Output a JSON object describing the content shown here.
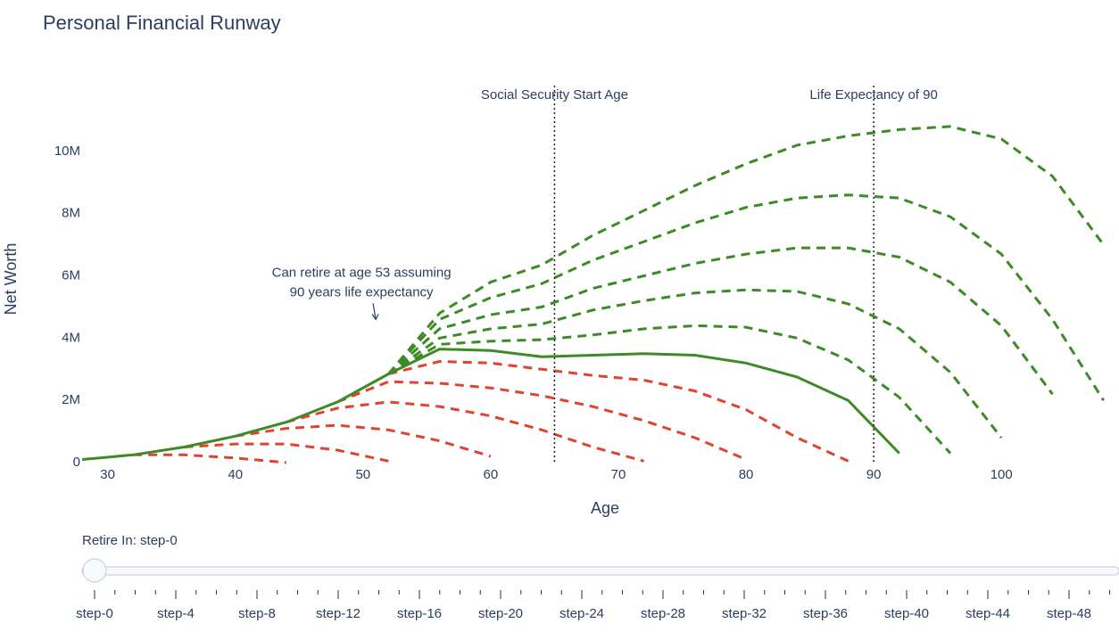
{
  "chart_data": {
    "type": "line",
    "title": "Personal Financial Runway",
    "x_label": "Age",
    "y_label": "Net Worth",
    "x": [
      28,
      32,
      36,
      40,
      44,
      48,
      52,
      56,
      60,
      64,
      68,
      72,
      76,
      80,
      84,
      88,
      92,
      96,
      100,
      104,
      108
    ],
    "xlim": [
      28,
      109
    ],
    "xticks": [
      30,
      40,
      50,
      60,
      70,
      80,
      90,
      100
    ],
    "ylim": [
      0,
      12000000
    ],
    "yticks": [
      0,
      {
        "value": 2000000,
        "label": "2M"
      },
      {
        "value": 4000000,
        "label": "4M"
      },
      {
        "value": 6000000,
        "label": "6M"
      },
      {
        "value": 8000000,
        "label": "8M"
      },
      {
        "value": 10000000,
        "label": "10M"
      }
    ],
    "grid": false,
    "series": [
      {
        "color": "#e0442f",
        "dash": "dash",
        "values": [
          null,
          250000,
          250000,
          150000,
          0,
          null,
          null,
          null,
          null,
          null,
          null,
          null,
          null,
          null,
          null,
          null,
          null,
          null,
          null,
          null,
          null
        ]
      },
      {
        "color": "#e0442f",
        "dash": "dash",
        "values": [
          null,
          null,
          500000,
          600000,
          600000,
          400000,
          50000,
          null,
          null,
          null,
          null,
          null,
          null,
          null,
          null,
          null,
          null,
          null,
          null,
          null,
          null
        ]
      },
      {
        "color": "#e0442f",
        "dash": "dash",
        "values": [
          null,
          null,
          null,
          850000,
          1100000,
          1200000,
          1050000,
          700000,
          200000,
          null,
          null,
          null,
          null,
          null,
          null,
          null,
          null,
          null,
          null,
          null,
          null
        ]
      },
      {
        "color": "#e0442f",
        "dash": "dash",
        "values": [
          null,
          null,
          null,
          null,
          1300000,
          1750000,
          1950000,
          1800000,
          1500000,
          1050000,
          500000,
          50000,
          null,
          null,
          null,
          null,
          null,
          null,
          null,
          null,
          null
        ]
      },
      {
        "color": "#e0442f",
        "dash": "dash",
        "values": [
          null,
          null,
          null,
          null,
          null,
          1950000,
          2600000,
          2550000,
          2400000,
          2150000,
          1800000,
          1350000,
          800000,
          100000,
          null,
          null,
          null,
          null,
          null,
          null,
          null
        ]
      },
      {
        "color": "#e0442f",
        "dash": "dash",
        "values": [
          null,
          null,
          null,
          null,
          null,
          null,
          2850000,
          3250000,
          3200000,
          3000000,
          2800000,
          2650000,
          2300000,
          1700000,
          800000,
          50000,
          null,
          null,
          null,
          null,
          null
        ]
      },
      {
        "color": "#3d8b26",
        "dash": "dash",
        "values": [
          null,
          null,
          null,
          null,
          null,
          null,
          2850000,
          3800000,
          3900000,
          3950000,
          4100000,
          4300000,
          4400000,
          4350000,
          4000000,
          3300000,
          2100000,
          300000,
          null,
          null,
          null
        ]
      },
      {
        "color": "#3d8b26",
        "dash": "dash",
        "values": [
          null,
          null,
          null,
          null,
          null,
          null,
          2850000,
          4000000,
          4300000,
          4450000,
          4900000,
          5200000,
          5450000,
          5550000,
          5500000,
          5100000,
          4300000,
          2900000,
          800000,
          null,
          null
        ]
      },
      {
        "color": "#3d8b26",
        "dash": "dash",
        "values": [
          null,
          null,
          null,
          null,
          null,
          null,
          2850000,
          4300000,
          4750000,
          5000000,
          5600000,
          6000000,
          6400000,
          6700000,
          6900000,
          6900000,
          6600000,
          5800000,
          4400000,
          2200000,
          null
        ]
      },
      {
        "color": "#3d8b26",
        "dash": "dash",
        "values": [
          null,
          null,
          null,
          null,
          null,
          null,
          2850000,
          4600000,
          5300000,
          5750000,
          6500000,
          7100000,
          7700000,
          8200000,
          8500000,
          8600000,
          8500000,
          7900000,
          6700000,
          4600000,
          2000000
        ]
      },
      {
        "color": "#3d8b26",
        "dash": "dash",
        "values": [
          null,
          null,
          null,
          null,
          null,
          null,
          2850000,
          4800000,
          5800000,
          6350000,
          7300000,
          8100000,
          8900000,
          9600000,
          10200000,
          10500000,
          10700000,
          10800000,
          10400000,
          9200000,
          7000000
        ]
      },
      {
        "color": "#3d8b26",
        "dash": "solid",
        "values": [
          100000,
          250000,
          500000,
          850000,
          1300000,
          1950000,
          2850000,
          3650000,
          3600000,
          3400000,
          3450000,
          3500000,
          3450000,
          3200000,
          2750000,
          2000000,
          300000,
          null,
          null,
          null,
          null
        ]
      }
    ],
    "vlines": [
      {
        "x": 65,
        "text": "Social Security Start Age"
      },
      {
        "x": 90,
        "text": "Life Expectancy of 90"
      }
    ],
    "annotation": {
      "x": 51,
      "y": 4600000,
      "lines": [
        "Can retire at age 53 assuming",
        "90 years life expectancy"
      ]
    },
    "slider": {
      "current": "Retire In: step-0",
      "steps": [
        "step-0",
        "step-4",
        "step-8",
        "step-12",
        "step-16",
        "step-20",
        "step-24",
        "step-28",
        "step-32",
        "step-36",
        "step-40",
        "step-44",
        "step-48"
      ]
    }
  }
}
